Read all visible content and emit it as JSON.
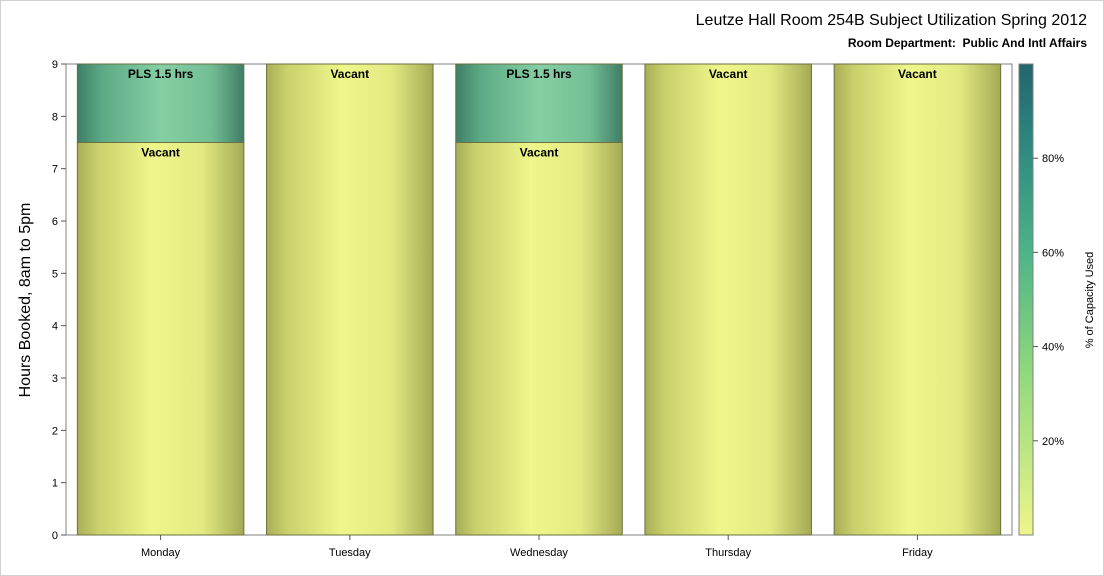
{
  "chart_data": {
    "type": "bar",
    "title": "Leutze Hall Room 254B Subject Utilization Spring 2012",
    "subtitle": "Room Department:  Public And Intl Affairs",
    "ylabel": "Hours Booked, 8am to 5pm",
    "xlabel": "",
    "ylim": [
      0,
      9
    ],
    "y_ticks": [
      "0",
      "1",
      "2",
      "3",
      "4",
      "5",
      "6",
      "7",
      "8",
      "9"
    ],
    "categories": [
      "Monday",
      "Tuesday",
      "Wednesday",
      "Thursday",
      "Friday"
    ],
    "stacked": true,
    "series": [
      {
        "values": [
          7.5,
          9,
          7.5,
          9,
          9
        ],
        "labels": [
          "Vacant",
          "Vacant",
          "Vacant",
          "Vacant",
          "Vacant"
        ],
        "capacity_used_pct": [
          0,
          0,
          0,
          0,
          0
        ]
      },
      {
        "values": [
          1.5,
          0,
          1.5,
          0,
          0
        ],
        "labels": [
          "PLS 1.5 hrs",
          "",
          "PLS 1.5 hrs",
          "",
          ""
        ],
        "capacity_used_pct": [
          40,
          0,
          40,
          0,
          0
        ]
      }
    ],
    "colorbar": {
      "label": "% of Capacity Used",
      "range": [
        0,
        100
      ],
      "ticks": [
        "20%",
        "40%",
        "60%",
        "80%"
      ],
      "tick_values": [
        20,
        40,
        60,
        80
      ],
      "colors": [
        "#eef58a",
        "#7fd67f",
        "#3aa58a",
        "#236a6e"
      ]
    },
    "grid": false,
    "legend": "none"
  }
}
